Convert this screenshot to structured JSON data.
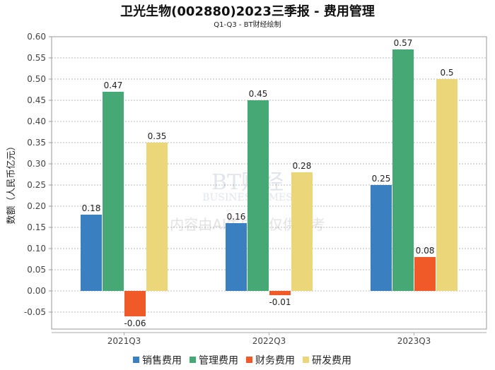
{
  "chart_data": {
    "type": "bar",
    "title": "卫光生物(002880)2023三季报 - 费用管理",
    "subtitle": "Q1-Q3 - BT财经绘制",
    "xlabel": "",
    "ylabel": "数额（人民币亿元）",
    "ylim": [
      -0.09,
      0.6
    ],
    "yticks": [
      "-0.05",
      "0.00",
      "0.05",
      "0.10",
      "0.15",
      "0.20",
      "0.25",
      "0.30",
      "0.35",
      "0.40",
      "0.45",
      "0.50",
      "0.55",
      "0.60"
    ],
    "grid": true,
    "legend_position": "bottom",
    "categories": [
      "2021Q3",
      "2022Q3",
      "2023Q3"
    ],
    "series": [
      {
        "name": "销售费用",
        "color": "#3a80c0",
        "values": [
          0.18,
          0.16,
          0.25
        ]
      },
      {
        "name": "管理费用",
        "color": "#46a874",
        "values": [
          0.47,
          0.45,
          0.57
        ]
      },
      {
        "name": "财务费用",
        "color": "#f05a28",
        "values": [
          -0.06,
          -0.01,
          0.08
        ]
      },
      {
        "name": "研发费用",
        "color": "#ecd67a",
        "values": [
          0.35,
          0.28,
          0.5
        ]
      }
    ],
    "watermark": [
      "BT财经",
      "BUSINESSTIMES",
      "内容由AI生成，仅供参考"
    ]
  }
}
